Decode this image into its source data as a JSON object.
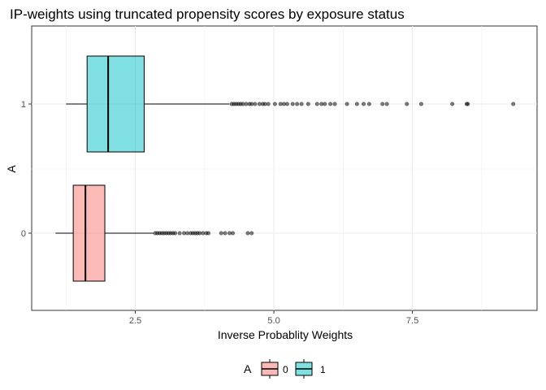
{
  "chart_data": {
    "type": "boxplot",
    "orientation": "horizontal",
    "title": "IP-weights using truncated propensity scores by exposure status",
    "xlabel": "Inverse Probablity Weights",
    "ylabel": "A",
    "xlim": [
      0.63,
      9.75
    ],
    "x_ticks": [
      {
        "value": 2.5,
        "label": "2.5"
      },
      {
        "value": 5.0,
        "label": "5.0"
      },
      {
        "value": 7.5,
        "label": "7.5"
      }
    ],
    "categories": [
      "0",
      "1"
    ],
    "grid": true,
    "legend": {
      "position": "bottom",
      "title": "A",
      "entries": [
        {
          "label": "0",
          "color": "#F8766D"
        },
        {
          "label": "1",
          "color": "#00BFC4"
        }
      ]
    },
    "series": [
      {
        "category": "0",
        "color": "#F8766D",
        "whisker_low": 1.06,
        "q1": 1.38,
        "median": 1.6,
        "q3": 1.95,
        "whisker_high": 2.83,
        "outliers": [
          2.86,
          2.9,
          2.94,
          2.98,
          3.02,
          3.06,
          3.1,
          3.14,
          3.18,
          3.22,
          3.3,
          3.38,
          3.44,
          3.5,
          3.54,
          3.58,
          3.62,
          3.66,
          3.72,
          3.78,
          3.82,
          4.05,
          4.12,
          4.2,
          4.26,
          4.53,
          4.6
        ]
      },
      {
        "category": "1",
        "color": "#00BFC4",
        "whisker_low": 1.25,
        "q1": 1.63,
        "median": 2.01,
        "q3": 2.66,
        "whisker_high": 4.2,
        "outliers": [
          4.24,
          4.28,
          4.32,
          4.36,
          4.4,
          4.44,
          4.5,
          4.56,
          4.6,
          4.66,
          4.74,
          4.8,
          4.84,
          4.9,
          5.02,
          5.12,
          5.18,
          5.24,
          5.34,
          5.42,
          5.5,
          5.62,
          5.78,
          5.86,
          5.92,
          6.02,
          6.1,
          6.32,
          6.5,
          6.62,
          6.72,
          6.96,
          7.04,
          7.4,
          7.66,
          8.22,
          8.48,
          8.5,
          9.32
        ]
      }
    ]
  }
}
